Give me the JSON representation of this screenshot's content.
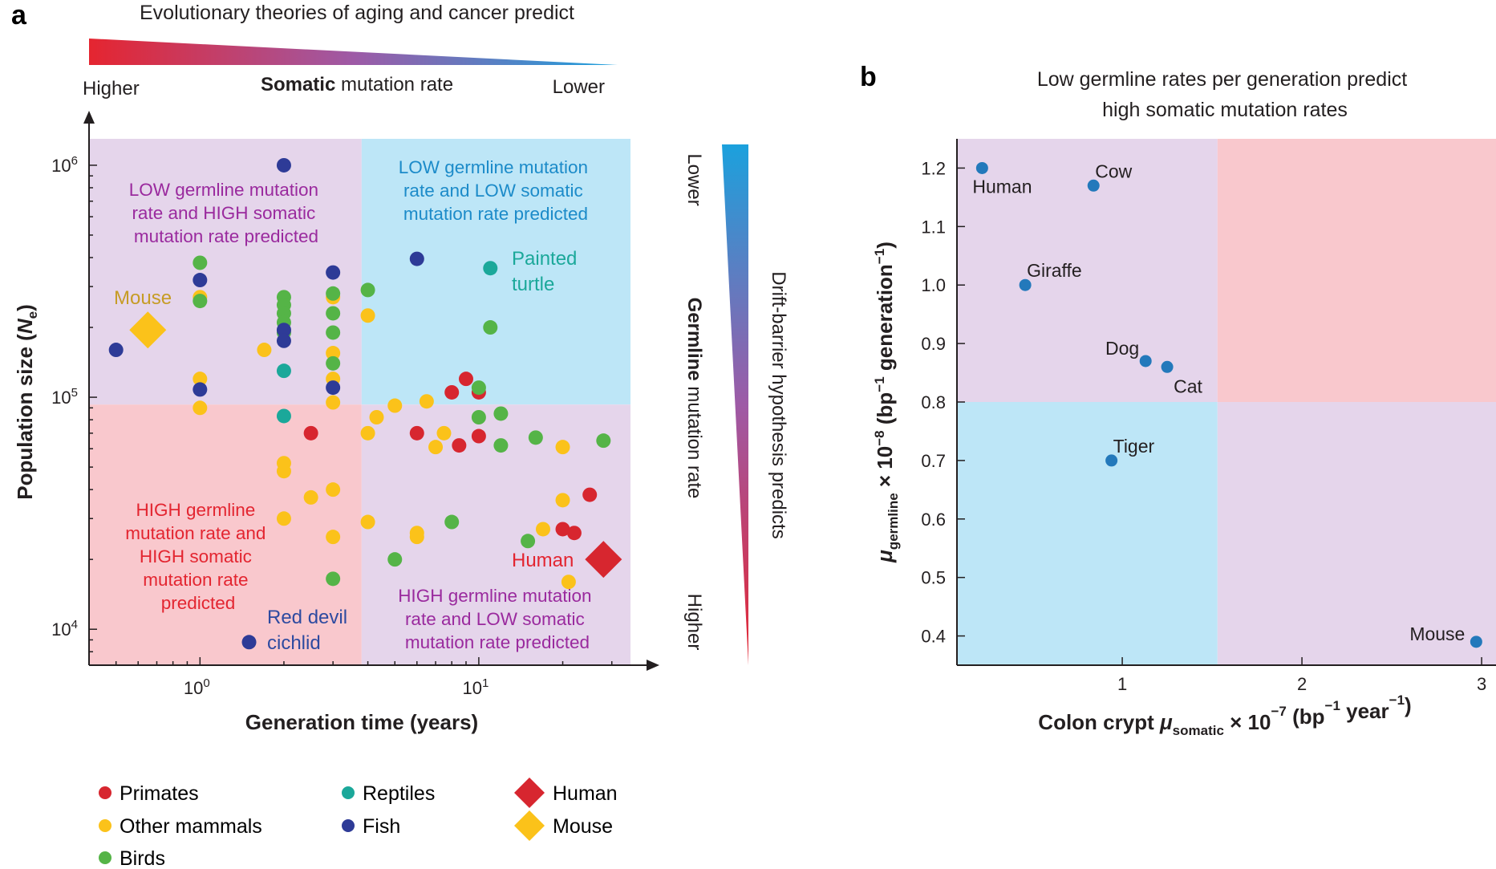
{
  "colors": {
    "primates": "#d7262f",
    "other_mammals": "#fbc21a",
    "birds": "#55b447",
    "reptiles": "#1ba89a",
    "fish": "#2e3b97",
    "purple_region": "#e5d5eb",
    "blue_region": "#bde6f7",
    "pink_region": "#f9c8cd",
    "purple_text": "#9a2a9e",
    "blue_text": "#1c8bc9",
    "red_text": "#e32530",
    "mouse_text": "#c69c25",
    "teal_text": "#1ba89a",
    "navy_text": "#2d4aa0",
    "b_point": "#2379bb",
    "grad_red": "#e52530",
    "grad_purple": "#9e5aa6",
    "grad_blue": "#1ba1dd"
  },
  "panel_a": {
    "label": "a",
    "top_title": "Evolutionary theories of aging and cancer predict",
    "somatic_higher": "Higher",
    "somatic_bold": "Somatic",
    "somatic_rest": " mutation rate",
    "somatic_lower": "Lower",
    "right_title": "Drift-barrier hypothesis predicts",
    "germline_lower": "Lower",
    "germline_higher": "Higher",
    "germline_bold": "Germline",
    "germline_rest": " mutation rate",
    "region_top_left": [
      "LOW germline mutation",
      "rate and HIGH somatic",
      "mutation rate predicted"
    ],
    "region_top_right": [
      "LOW germline mutation",
      "rate and LOW somatic",
      "mutation rate predicted"
    ],
    "region_bottom_left": [
      "HIGH germline",
      "mutation rate and",
      "HIGH somatic",
      "mutation rate",
      "predicted"
    ],
    "region_bottom_right": [
      "HIGH germline mutation",
      "rate and LOW somatic",
      "mutation rate predicted"
    ],
    "label_mouse": "Mouse",
    "label_turtle": [
      "Painted",
      "turtle"
    ],
    "label_cichlid": [
      "Red devil",
      "cichlid"
    ],
    "label_human": "Human",
    "legend": {
      "primates": "Primates",
      "other_mammals": "Other mammals",
      "birds": "Birds",
      "reptiles": "Reptiles",
      "fish": "Fish",
      "human": "Human",
      "mouse": "Mouse"
    }
  },
  "panel_b": {
    "label": "b",
    "title": [
      "Low germline rates per generation predict",
      "high somatic mutation rates"
    ]
  },
  "chart_data": [
    {
      "type": "scatter",
      "title": "Evolutionary theories of aging and cancer predict",
      "xlabel": "Generation time (years)",
      "ylabel": "Population size (Ne)",
      "x_scale": "log",
      "y_scale": "log",
      "xlim": [
        0.4,
        35
      ],
      "ylim": [
        7000,
        1300000
      ],
      "x_ticks": [
        1,
        10
      ],
      "x_tick_labels": [
        "10^0",
        "10^1"
      ],
      "y_ticks": [
        10000,
        100000,
        1000000
      ],
      "y_tick_labels": [
        "10^4",
        "10^5",
        "10^6"
      ],
      "region_divider": {
        "x": 3.8,
        "y": 93000
      },
      "series": [
        {
          "name": "Primates",
          "color_key": "primates",
          "points": [
            [
              2.5,
              70000
            ],
            [
              6,
              70000
            ],
            [
              8,
              105000
            ],
            [
              9,
              120000
            ],
            [
              10,
              105000
            ],
            [
              8.5,
              62000
            ],
            [
              10,
              68000
            ],
            [
              20,
              27000
            ],
            [
              22,
              26000
            ],
            [
              25,
              38000
            ]
          ]
        },
        {
          "name": "Other mammals",
          "color_key": "other_mammals",
          "points": [
            [
              1,
              270000
            ],
            [
              1,
              120000
            ],
            [
              1,
              90000
            ],
            [
              1.7,
              160000
            ],
            [
              2,
              52000
            ],
            [
              2,
              48000
            ],
            [
              2,
              30000
            ],
            [
              2.5,
              37000
            ],
            [
              3,
              270000
            ],
            [
              3,
              155000
            ],
            [
              3,
              120000
            ],
            [
              3,
              95000
            ],
            [
              3,
              40000
            ],
            [
              3,
              25000
            ],
            [
              4,
              225000
            ],
            [
              4,
              70000
            ],
            [
              4.3,
              82000
            ],
            [
              5,
              92000
            ],
            [
              4,
              29000
            ],
            [
              6,
              26000
            ],
            [
              6,
              25000
            ],
            [
              6.5,
              96000
            ],
            [
              7,
              61000
            ],
            [
              7.5,
              70000
            ],
            [
              17,
              27000
            ],
            [
              20,
              36000
            ],
            [
              20,
              61000
            ],
            [
              21,
              16000
            ]
          ]
        },
        {
          "name": "Birds",
          "color_key": "birds",
          "points": [
            [
              1,
              380000
            ],
            [
              1,
              260000
            ],
            [
              2,
              270000
            ],
            [
              2,
              250000
            ],
            [
              2,
              230000
            ],
            [
              2,
              210000
            ],
            [
              2,
              190000
            ],
            [
              3,
              280000
            ],
            [
              3,
              230000
            ],
            [
              3,
              190000
            ],
            [
              3,
              140000
            ],
            [
              3,
              16500
            ],
            [
              4,
              290000
            ],
            [
              5,
              20000
            ],
            [
              8,
              29000
            ],
            [
              10,
              110000
            ],
            [
              10,
              82000
            ],
            [
              11,
              200000
            ],
            [
              12,
              62000
            ],
            [
              12,
              85000
            ],
            [
              15,
              24000
            ],
            [
              16,
              67000
            ],
            [
              28,
              65000
            ]
          ]
        },
        {
          "name": "Reptiles",
          "color_key": "reptiles",
          "points": [
            [
              11,
              360000
            ],
            [
              2,
              130000
            ],
            [
              2,
              83000
            ]
          ]
        },
        {
          "name": "Fish",
          "color_key": "fish",
          "points": [
            [
              2,
              1000000
            ],
            [
              0.5,
              160000
            ],
            [
              1,
              320000
            ],
            [
              1,
              108000
            ],
            [
              2,
              195000
            ],
            [
              2,
              175000
            ],
            [
              3,
              345000
            ],
            [
              3,
              110000
            ],
            [
              6,
              395000
            ],
            [
              1.5,
              8800
            ]
          ]
        },
        {
          "name": "Human",
          "color_key": "primates",
          "marker": "diamond",
          "points": [
            [
              28,
              20000
            ]
          ]
        },
        {
          "name": "Mouse",
          "color_key": "other_mammals",
          "marker": "diamond",
          "points": [
            [
              0.65,
              195000
            ]
          ]
        }
      ]
    },
    {
      "type": "scatter",
      "title": "Low germline rates per generation predict high somatic mutation rates",
      "xlabel": "Colon crypt μsomatic × 10^−7 (bp^−1 year^−1)",
      "ylabel": "μgermline × 10^−8 (bp^−1 generation^−1)",
      "xlim": [
        0.08,
        3.08
      ],
      "ylim": [
        0.35,
        1.25
      ],
      "x_ticks": [
        1,
        2,
        3
      ],
      "x_tick_labels": [
        "1",
        "2",
        "3"
      ],
      "y_ticks": [
        0.4,
        0.5,
        0.6,
        0.7,
        0.8,
        0.9,
        1.0,
        1.1,
        1.2
      ],
      "y_tick_labels": [
        "0.4",
        "0.5",
        "0.6",
        "0.7",
        "0.8",
        "0.9",
        "1.0",
        "1.1",
        "1.2"
      ],
      "region_divider": {
        "x": 1.53,
        "y": 0.8
      },
      "points": [
        {
          "label": "Human",
          "x": 0.22,
          "y": 1.2,
          "label_pos": "below"
        },
        {
          "label": "Cow",
          "x": 0.84,
          "y": 1.17,
          "label_pos": "above-right"
        },
        {
          "label": "Giraffe",
          "x": 0.46,
          "y": 1.0,
          "label_pos": "above-right"
        },
        {
          "label": "Dog",
          "x": 1.13,
          "y": 0.87,
          "label_pos": "above-left"
        },
        {
          "label": "Cat",
          "x": 1.25,
          "y": 0.86,
          "label_pos": "below-right"
        },
        {
          "label": "Tiger",
          "x": 0.94,
          "y": 0.7,
          "label_pos": "above-right"
        },
        {
          "label": "Mouse",
          "x": 2.97,
          "y": 0.39,
          "label_pos": "left"
        }
      ]
    }
  ]
}
